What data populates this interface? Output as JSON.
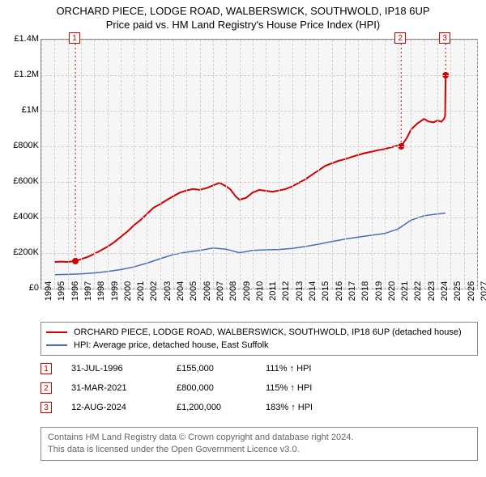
{
  "title": "ORCHARD PIECE, LODGE ROAD, WALBERSWICK, SOUTHWOLD, IP18 6UP",
  "subtitle": "Price paid vs. HM Land Registry's House Price Index (HPI)",
  "chart": {
    "type": "line",
    "background_color": "#f6f6f6",
    "border_color": "#888888",
    "grid_color": "#d0d0d0",
    "x": {
      "min": 1994,
      "max": 2027,
      "ticks": [
        1994,
        1995,
        1996,
        1997,
        1998,
        1999,
        2000,
        2001,
        2002,
        2003,
        2004,
        2005,
        2006,
        2007,
        2008,
        2009,
        2010,
        2011,
        2012,
        2013,
        2014,
        2015,
        2016,
        2017,
        2018,
        2019,
        2020,
        2021,
        2022,
        2023,
        2024,
        2025,
        2026,
        2027
      ]
    },
    "y": {
      "min": 0,
      "max": 1400000,
      "ticks": [
        0,
        200000,
        400000,
        600000,
        800000,
        1000000,
        1200000,
        1400000
      ],
      "tick_labels": [
        "£0",
        "£200K",
        "£400K",
        "£600K",
        "£800K",
        "£1M",
        "£1.2M",
        "£1.4M"
      ]
    },
    "label_fontsize": 11,
    "series": [
      {
        "name": "ORCHARD PIECE, LODGE ROAD, WALBERSWICK, SOUTHWOLD, IP18 6UP (detached house)",
        "color": "#d40000",
        "line_width": 2,
        "data": [
          [
            1995.0,
            150000
          ],
          [
            1995.5,
            152000
          ],
          [
            1996.0,
            150000
          ],
          [
            1996.58,
            155000
          ],
          [
            1997.0,
            165000
          ],
          [
            1997.5,
            178000
          ],
          [
            1998.0,
            195000
          ],
          [
            1998.5,
            215000
          ],
          [
            1999.0,
            235000
          ],
          [
            1999.5,
            260000
          ],
          [
            2000.0,
            290000
          ],
          [
            2000.5,
            320000
          ],
          [
            2001.0,
            355000
          ],
          [
            2001.5,
            385000
          ],
          [
            2002.0,
            420000
          ],
          [
            2002.5,
            455000
          ],
          [
            2003.0,
            475000
          ],
          [
            2003.5,
            498000
          ],
          [
            2004.0,
            520000
          ],
          [
            2004.5,
            540000
          ],
          [
            2005.0,
            552000
          ],
          [
            2005.5,
            560000
          ],
          [
            2006.0,
            555000
          ],
          [
            2006.5,
            565000
          ],
          [
            2007.0,
            580000
          ],
          [
            2007.5,
            595000
          ],
          [
            2008.0,
            575000
          ],
          [
            2008.3,
            560000
          ],
          [
            2008.7,
            520000
          ],
          [
            2009.0,
            500000
          ],
          [
            2009.5,
            510000
          ],
          [
            2010.0,
            540000
          ],
          [
            2010.5,
            555000
          ],
          [
            2011.0,
            550000
          ],
          [
            2011.5,
            545000
          ],
          [
            2012.0,
            552000
          ],
          [
            2012.5,
            560000
          ],
          [
            2013.0,
            575000
          ],
          [
            2013.5,
            595000
          ],
          [
            2014.0,
            615000
          ],
          [
            2014.5,
            640000
          ],
          [
            2015.0,
            665000
          ],
          [
            2015.5,
            690000
          ],
          [
            2016.0,
            705000
          ],
          [
            2016.5,
            718000
          ],
          [
            2017.0,
            728000
          ],
          [
            2017.5,
            740000
          ],
          [
            2018.0,
            752000
          ],
          [
            2018.5,
            762000
          ],
          [
            2019.0,
            770000
          ],
          [
            2019.5,
            778000
          ],
          [
            2020.0,
            785000
          ],
          [
            2020.5,
            795000
          ],
          [
            2021.0,
            805000
          ],
          [
            2021.25,
            800000
          ],
          [
            2021.7,
            850000
          ],
          [
            2022.0,
            895000
          ],
          [
            2022.5,
            930000
          ],
          [
            2023.0,
            955000
          ],
          [
            2023.3,
            940000
          ],
          [
            2023.7,
            935000
          ],
          [
            2024.0,
            945000
          ],
          [
            2024.3,
            938000
          ],
          [
            2024.5,
            955000
          ],
          [
            2024.58,
            970000
          ],
          [
            2024.62,
            1200000
          ]
        ]
      },
      {
        "name": "HPI: Average price, detached house, East Suffolk",
        "color": "#4a6db0",
        "line_width": 1.5,
        "data": [
          [
            1995.0,
            78000
          ],
          [
            1996.0,
            80000
          ],
          [
            1997.0,
            83000
          ],
          [
            1998.0,
            88000
          ],
          [
            1999.0,
            96000
          ],
          [
            2000.0,
            107000
          ],
          [
            2001.0,
            122000
          ],
          [
            2002.0,
            143000
          ],
          [
            2003.0,
            168000
          ],
          [
            2004.0,
            192000
          ],
          [
            2005.0,
            205000
          ],
          [
            2006.0,
            215000
          ],
          [
            2007.0,
            228000
          ],
          [
            2008.0,
            222000
          ],
          [
            2009.0,
            202000
          ],
          [
            2010.0,
            215000
          ],
          [
            2011.0,
            218000
          ],
          [
            2012.0,
            220000
          ],
          [
            2013.0,
            226000
          ],
          [
            2014.0,
            237000
          ],
          [
            2015.0,
            250000
          ],
          [
            2016.0,
            265000
          ],
          [
            2017.0,
            278000
          ],
          [
            2018.0,
            290000
          ],
          [
            2019.0,
            300000
          ],
          [
            2020.0,
            310000
          ],
          [
            2021.0,
            335000
          ],
          [
            2022.0,
            385000
          ],
          [
            2023.0,
            410000
          ],
          [
            2024.0,
            420000
          ],
          [
            2024.6,
            425000
          ]
        ]
      }
    ],
    "markers": [
      {
        "n": "1",
        "date": "31-JUL-1996",
        "x": 1996.58,
        "y": 155000,
        "price": "£155,000",
        "hpi": "111% ↑ HPI",
        "color": "#d40000"
      },
      {
        "n": "2",
        "date": "31-MAR-2021",
        "x": 2021.25,
        "y": 800000,
        "price": "£800,000",
        "hpi": "115% ↑ HPI",
        "color": "#d40000"
      },
      {
        "n": "3",
        "date": "12-AUG-2024",
        "x": 2024.62,
        "y": 1200000,
        "price": "£1,200,000",
        "hpi": "183% ↑ HPI",
        "color": "#d40000"
      }
    ]
  },
  "footer": {
    "line1": "Contains HM Land Registry data © Crown copyright and database right 2024.",
    "line2": "This data is licensed under the Open Government Licence v3.0.",
    "color": "#666666"
  }
}
